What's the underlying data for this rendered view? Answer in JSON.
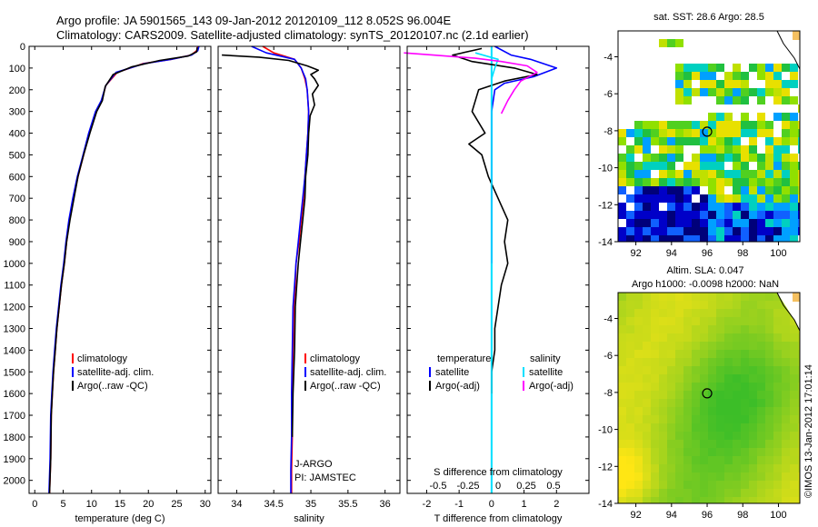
{
  "title_line1": "Argo profile: JA 5901565_143 09-Jan-2012 20120109_112 8.052S 96.004E",
  "title_line2": "Climatology: CARS2009. Satellite-adjusted climatology: synTS_20120107.nc (2.1d earlier)",
  "side_stamp": "©IMOS 13-Jan-2012 17:01:14",
  "depth_ticks": [
    0,
    100,
    200,
    300,
    400,
    500,
    600,
    700,
    800,
    900,
    1000,
    1100,
    1200,
    1300,
    1400,
    1500,
    1600,
    1700,
    1800,
    1900,
    2000
  ],
  "colors": {
    "climatology": "#ff0000",
    "satellite": "#0000ff",
    "argo": "#000000",
    "argo_adj_s": "#ff00ff",
    "satellite_s": "#00e0ff"
  },
  "chart_data": [
    {
      "type": "line",
      "name": "temperature-profile",
      "xlabel": "temperature (deg C)",
      "xlim": [
        -1,
        31
      ],
      "ylim": [
        2060,
        0
      ],
      "xticks": [
        0,
        5,
        10,
        15,
        20,
        25,
        30
      ],
      "legend": {
        "placement": "lower-center",
        "entries": [
          "climatology",
          "satellite-adj. clim.",
          "Argo(..raw -QC)"
        ]
      },
      "series": [
        {
          "name": "climatology",
          "color": "#ff0000",
          "x": [
            28.7,
            28.5,
            27.5,
            24,
            19,
            14.5,
            12.5,
            11.8,
            10.8,
            9.6,
            8.6,
            7.6,
            6.8,
            6.1,
            5.6,
            5.2,
            4.7,
            4.3,
            3.9,
            3.6,
            3.3,
            3.1,
            2.9,
            2.8,
            2.6
          ],
          "y": [
            0,
            20,
            40,
            60,
            80,
            120,
            180,
            250,
            300,
            400,
            500,
            600,
            700,
            800,
            900,
            1000,
            1100,
            1200,
            1300,
            1400,
            1500,
            1600,
            1700,
            1900,
            2060
          ]
        },
        {
          "name": "satellite-adj. clim.",
          "color": "#0000ff",
          "x": [
            28.9,
            28.7,
            27.6,
            24,
            19.2,
            14.3,
            12.5,
            11.7,
            10.7,
            9.5,
            8.5,
            7.5,
            6.7,
            6.0,
            5.5,
            5.1,
            4.6,
            4.2,
            3.8,
            3.5,
            3.2,
            3.0,
            2.8,
            2.7,
            2.5
          ],
          "y": [
            0,
            20,
            40,
            60,
            80,
            120,
            180,
            250,
            300,
            400,
            500,
            600,
            700,
            800,
            900,
            1000,
            1100,
            1200,
            1300,
            1400,
            1500,
            1600,
            1700,
            1900,
            2060
          ]
        },
        {
          "name": "Argo(..raw -QC)",
          "color": "#000000",
          "x": [
            28.6,
            28.5,
            27,
            22,
            17,
            13.8,
            12.4,
            11.9,
            10.9,
            9.7,
            8.6,
            7.6,
            6.9,
            6.2,
            5.6,
            5.2,
            4.7,
            4.3,
            3.9,
            3.6,
            3.3,
            3.1,
            2.9,
            2.8,
            2.6
          ],
          "y": [
            5,
            25,
            45,
            65,
            95,
            130,
            185,
            250,
            300,
            400,
            500,
            600,
            700,
            800,
            900,
            1000,
            1100,
            1200,
            1300,
            1400,
            1500,
            1600,
            1700,
            1900,
            2060
          ]
        }
      ],
      "annotations": []
    },
    {
      "type": "line",
      "name": "salinity-profile",
      "xlabel": "salinity",
      "xlim": [
        33.75,
        36.2
      ],
      "ylim": [
        2060,
        0
      ],
      "xticks": [
        34,
        34.5,
        35,
        35.5,
        36
      ],
      "legend": {
        "placement": "lower-center",
        "entries": [
          "climatology",
          "satellite-adj. clim.",
          "Argo(..raw -QC)"
        ]
      },
      "series": [
        {
          "name": "climatology",
          "color": "#ff0000",
          "x": [
            34.35,
            34.5,
            34.78,
            34.87,
            34.92,
            34.95,
            34.97,
            34.96,
            34.94,
            34.92,
            34.9,
            34.87,
            34.84,
            34.8,
            34.79,
            34.77,
            34.76,
            34.75,
            34.75,
            34.74,
            34.74
          ],
          "y": [
            0,
            30,
            60,
            100,
            150,
            200,
            300,
            400,
            500,
            600,
            700,
            800,
            900,
            1000,
            1100,
            1200,
            1400,
            1600,
            1800,
            1950,
            2060
          ]
        },
        {
          "name": "satellite-adj. clim.",
          "color": "#0000ff",
          "x": [
            34.2,
            34.4,
            34.78,
            34.87,
            34.93,
            34.95,
            34.97,
            34.96,
            34.94,
            34.92,
            34.89,
            34.86,
            34.83,
            34.8,
            34.78,
            34.76,
            34.75,
            34.74,
            34.74,
            34.73,
            34.73
          ],
          "y": [
            0,
            30,
            60,
            100,
            150,
            200,
            300,
            400,
            500,
            600,
            700,
            800,
            900,
            1000,
            1100,
            1200,
            1400,
            1600,
            1800,
            1950,
            2060
          ]
        },
        {
          "name": "Argo(..raw -QC)",
          "color": "#000000",
          "x": [
            33.8,
            34.3,
            34.7,
            34.95,
            35.1,
            35.0,
            35.05,
            35.1,
            35.02,
            35.05,
            34.99,
            34.97,
            34.96,
            34.93,
            34.92,
            34.89,
            34.86,
            34.83,
            34.81,
            34.79,
            34.78,
            34.76,
            34.75
          ],
          "y": [
            40,
            50,
            65,
            90,
            110,
            130,
            150,
            180,
            220,
            270,
            320,
            400,
            500,
            600,
            700,
            800,
            900,
            1000,
            1100,
            1200,
            1400,
            1600,
            1800
          ]
        }
      ],
      "annotations": [
        "J-ARGO",
        "PI: JAMSTEC"
      ]
    },
    {
      "type": "line",
      "name": "difference-profile",
      "xlabel": "T difference from climatology",
      "x2label": "S difference from climatology",
      "xlim": [
        -2.6,
        3.0
      ],
      "ylim": [
        2060,
        0
      ],
      "xticks": [
        -2,
        -1,
        0,
        1,
        2
      ],
      "x2ticks": [
        "-0.5",
        "-0.25",
        "0",
        "0.25",
        "0.5"
      ],
      "legend": {
        "placement": "middle",
        "entries": [
          "temperature",
          "satellite",
          "Argo(-adj)",
          "salinity",
          "satellite",
          "Argo(-adj)"
        ]
      },
      "series": [
        {
          "name": "temperature satellite",
          "color": "#0000ff",
          "x": [
            0.1,
            0.6,
            1.2,
            2.0,
            1.3,
            0.4,
            0.1,
            0.0,
            0.0,
            0.0
          ],
          "y": [
            0,
            40,
            60,
            100,
            140,
            170,
            200,
            300,
            500,
            1000
          ]
        },
        {
          "name": "temperature Argo(-adj)",
          "color": "#000000",
          "x": [
            -0.3,
            -1.2,
            -0.6,
            0.7,
            1.4,
            0.4,
            -0.4,
            -0.6,
            -0.2,
            -0.7,
            -0.3,
            -0.1,
            0.2,
            0.5,
            0.4,
            0.5,
            0.3,
            0.2,
            0.1,
            0.1,
            0.0,
            0.0
          ],
          "y": [
            10,
            40,
            70,
            100,
            130,
            160,
            200,
            300,
            400,
            450,
            500,
            600,
            700,
            800,
            900,
            1000,
            1100,
            1200,
            1300,
            1400,
            1500,
            1600
          ]
        },
        {
          "name": "salinity satellite",
          "color": "#00e0ff",
          "x": [
            -0.5,
            0.2,
            0.1,
            0.0,
            0.0,
            0.0,
            0.0
          ],
          "y": [
            30,
            60,
            100,
            150,
            300,
            1000,
            2060
          ]
        },
        {
          "name": "salinity Argo(-adj)",
          "color": "#ff00ff",
          "x": [
            -2.7,
            -1.8,
            -0.5,
            0.3,
            1.1,
            1.4,
            0.9,
            0.7,
            0.5,
            0.3
          ],
          "y": [
            30,
            40,
            55,
            70,
            90,
            120,
            160,
            200,
            250,
            310
          ]
        }
      ],
      "annotations": []
    },
    {
      "type": "heatmap",
      "name": "sst-map",
      "title": "sat. SST: 28.6 Argo: 28.5",
      "xlim": [
        91,
        101.2
      ],
      "ylim": [
        -14,
        -2.6
      ],
      "xticks": [
        92,
        94,
        96,
        98,
        100
      ],
      "yticks": [
        -4,
        -6,
        -8,
        -10,
        -12,
        -14
      ],
      "marker": {
        "lon": 96,
        "lat": -8.05
      }
    },
    {
      "type": "heatmap",
      "name": "sla-map",
      "title_line1": "Altim. SLA: 0.047",
      "title_line2": "Argo h1000: -0.0098 h2000: NaN",
      "xlim": [
        91,
        101.2
      ],
      "ylim": [
        -14,
        -2.6
      ],
      "xticks": [
        92,
        94,
        96,
        98,
        100
      ],
      "yticks": [
        -4,
        -6,
        -8,
        -10,
        -12,
        -14
      ],
      "marker": {
        "lon": 96,
        "lat": -8.05
      }
    }
  ]
}
